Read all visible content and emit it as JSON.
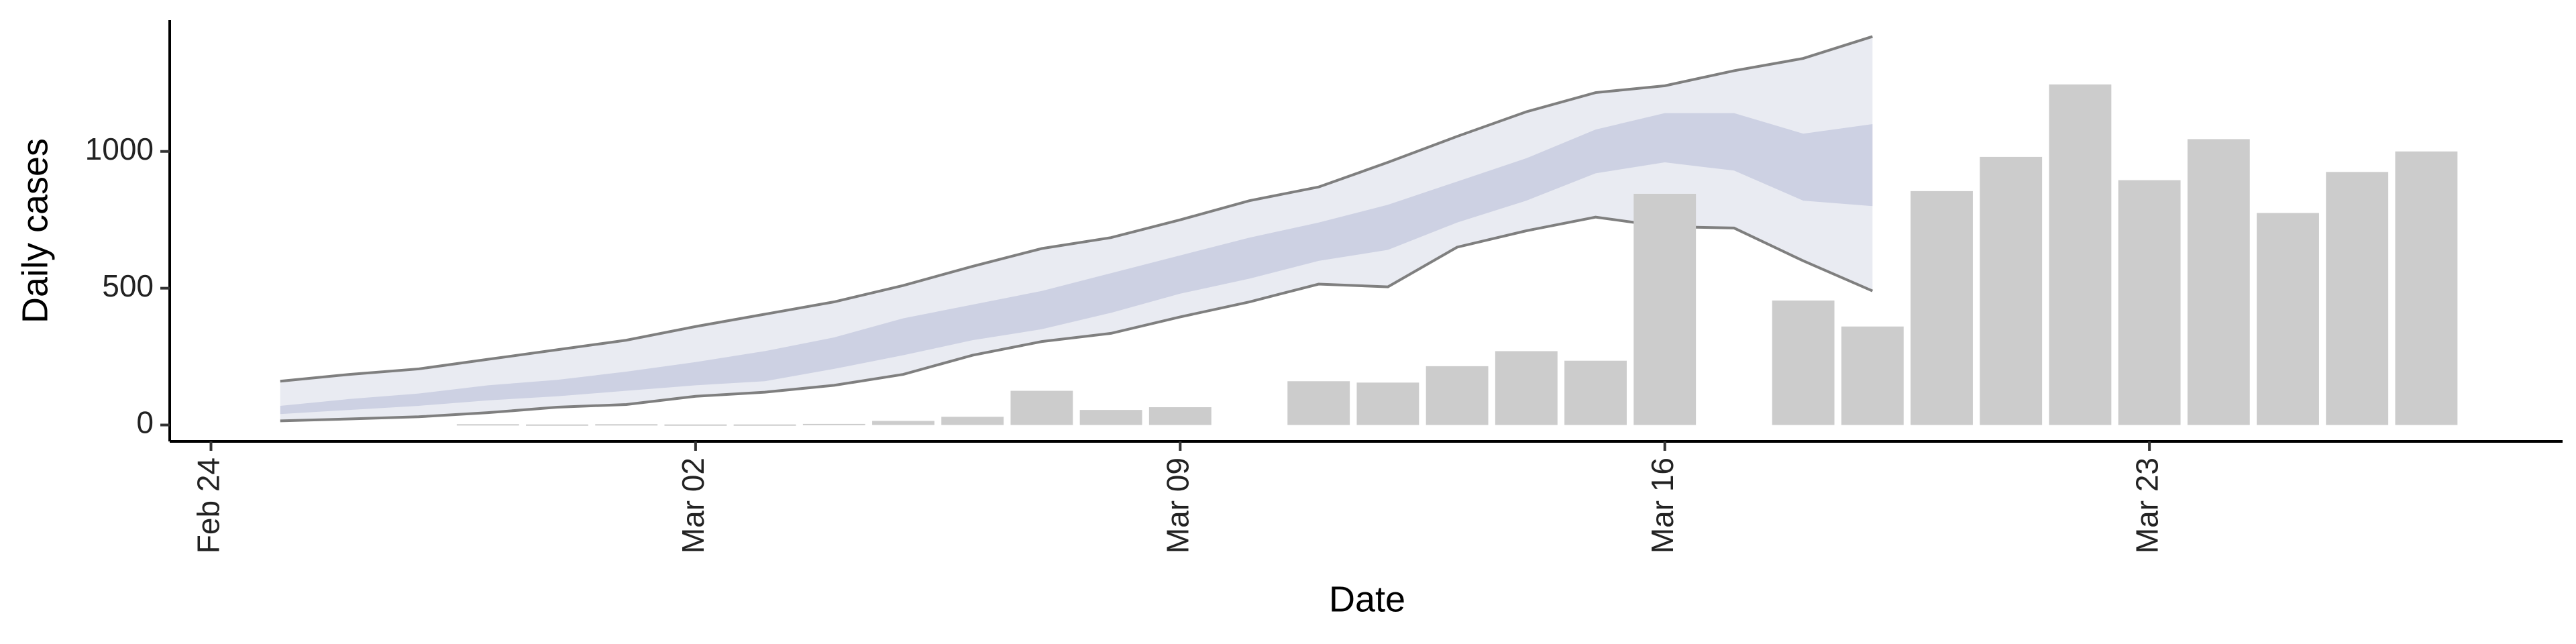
{
  "chart_data": {
    "type": "bar",
    "x_label": "Date",
    "y_label": "Daily cases",
    "categories": [
      "Feb 24",
      null,
      null,
      null,
      null,
      null,
      null,
      "Mar 02",
      null,
      null,
      null,
      null,
      null,
      null,
      "Mar 09",
      null,
      null,
      null,
      null,
      null,
      null,
      "Mar 16",
      null,
      null,
      null,
      null,
      null,
      null,
      "Mar 23",
      null,
      null,
      null,
      null
    ],
    "values": [
      null,
      null,
      null,
      null,
      3,
      2,
      3,
      2,
      2,
      4,
      15,
      30,
      125,
      55,
      65,
      null,
      160,
      155,
      215,
      270,
      235,
      845,
      null,
      455,
      360,
      855,
      980,
      1245,
      895,
      1045,
      775,
      925,
      1000
    ],
    "color": "#cccccc",
    "bands": [
      {
        "color": "#e9ebf2",
        "line_color": "#7f7f7f",
        "lower": [
          null,
          15,
          22,
          30,
          45,
          65,
          75,
          105,
          120,
          145,
          185,
          255,
          305,
          335,
          395,
          450,
          515,
          505,
          650,
          710,
          760,
          725,
          720,
          600,
          490,
          null,
          null,
          null,
          null,
          null,
          null,
          null,
          null
        ],
        "upper": [
          null,
          160,
          185,
          205,
          240,
          275,
          310,
          360,
          405,
          450,
          510,
          580,
          645,
          685,
          750,
          820,
          870,
          960,
          1055,
          1145,
          1215,
          1240,
          1295,
          1340,
          1420,
          null,
          null,
          null,
          null,
          null,
          null,
          null,
          null
        ]
      },
      {
        "color": "#cdd1e3",
        "lower": [
          null,
          40,
          55,
          70,
          90,
          105,
          125,
          145,
          160,
          205,
          255,
          310,
          350,
          410,
          480,
          535,
          600,
          640,
          740,
          820,
          920,
          960,
          930,
          820,
          800,
          null,
          null,
          null,
          null,
          null,
          null,
          null,
          null
        ],
        "upper": [
          null,
          70,
          95,
          115,
          145,
          165,
          195,
          230,
          270,
          320,
          390,
          440,
          490,
          555,
          620,
          685,
          740,
          805,
          890,
          975,
          1080,
          1140,
          1140,
          1065,
          1100,
          null,
          null,
          null,
          null,
          null,
          null,
          null,
          null
        ]
      }
    ],
    "ylim": [
      -60,
      1480
    ],
    "yticks": [
      0,
      500,
      1000
    ],
    "grid": false
  }
}
